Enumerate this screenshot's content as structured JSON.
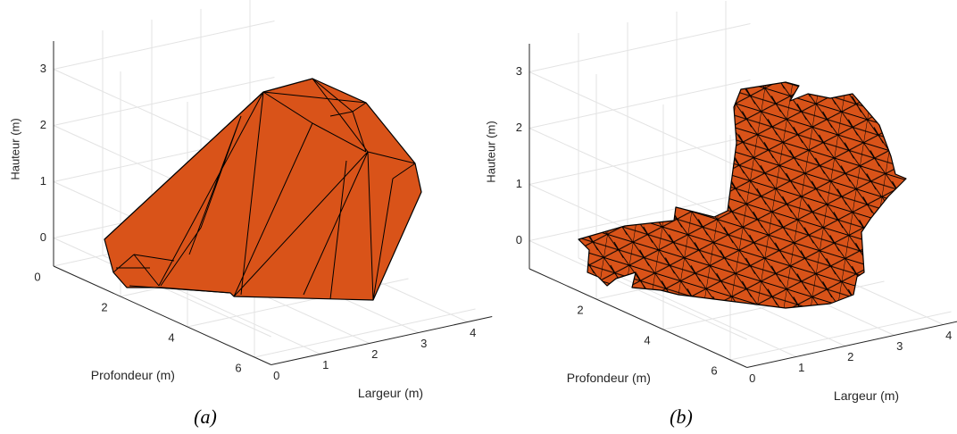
{
  "chart_data": [
    {
      "type": "surface3d",
      "caption": "(a)",
      "x_label": "Largeur (m)",
      "y_label": "Profondeur (m)",
      "z_label": "Hauteur (m)",
      "xlim": [
        0,
        4.5
      ],
      "ylim": [
        0,
        6.5
      ],
      "zlim": [
        -0.5,
        3.5
      ],
      "xticks": [
        0,
        1,
        2,
        3,
        4
      ],
      "yticks": [
        0,
        2,
        4,
        6
      ],
      "zticks": [
        0,
        1,
        2,
        3
      ],
      "grid": true,
      "color": "#d95319"
    },
    {
      "type": "surface3d",
      "caption": "(b)",
      "x_label": "Largeur (m)",
      "y_label": "Profondeur (m)",
      "z_label": "Hauteur (m)",
      "xlim": [
        0,
        4.5
      ],
      "ylim": [
        0,
        6.5
      ],
      "zlim": [
        -0.5,
        3.5
      ],
      "xticks": [
        0,
        1,
        2,
        3,
        4
      ],
      "yticks": [
        2,
        4,
        6
      ],
      "zticks": [
        0,
        1,
        2,
        3
      ],
      "grid": true,
      "color": "#d95319"
    }
  ]
}
